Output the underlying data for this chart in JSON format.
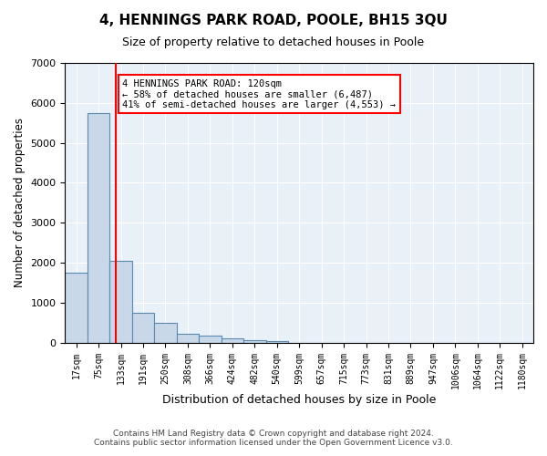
{
  "title": "4, HENNINGS PARK ROAD, POOLE, BH15 3QU",
  "subtitle": "Size of property relative to detached houses in Poole",
  "xlabel": "Distribution of detached houses by size in Poole",
  "ylabel": "Number of detached properties",
  "bin_labels": [
    "17sqm",
    "75sqm",
    "133sqm",
    "191sqm",
    "250sqm",
    "308sqm",
    "366sqm",
    "424sqm",
    "482sqm",
    "540sqm",
    "599sqm",
    "657sqm",
    "715sqm",
    "773sqm",
    "831sqm",
    "889sqm",
    "947sqm",
    "1006sqm",
    "1064sqm",
    "1122sqm",
    "1180sqm"
  ],
  "bar_values": [
    1750,
    5750,
    2050,
    750,
    500,
    225,
    175,
    100,
    65,
    40,
    0,
    0,
    0,
    0,
    0,
    0,
    0,
    0,
    0,
    0,
    0
  ],
  "bar_color": "#c8d8e8",
  "bar_edge_color": "#5a8ab0",
  "red_line_index": 1.65,
  "property_label": "4 HENNINGS PARK ROAD: 120sqm",
  "annotation_line1": "← 58% of detached houses are smaller (6,487)",
  "annotation_line2": "41% of semi-detached houses are larger (4,553) →",
  "property_size": 120,
  "ylim": [
    0,
    7000
  ],
  "yticks": [
    0,
    1000,
    2000,
    3000,
    4000,
    5000,
    6000,
    7000
  ],
  "footer_line1": "Contains HM Land Registry data © Crown copyright and database right 2024.",
  "footer_line2": "Contains public sector information licensed under the Open Government Licence v3.0.",
  "background_color": "#e8f0f8",
  "plot_background": "#e8f0f8"
}
